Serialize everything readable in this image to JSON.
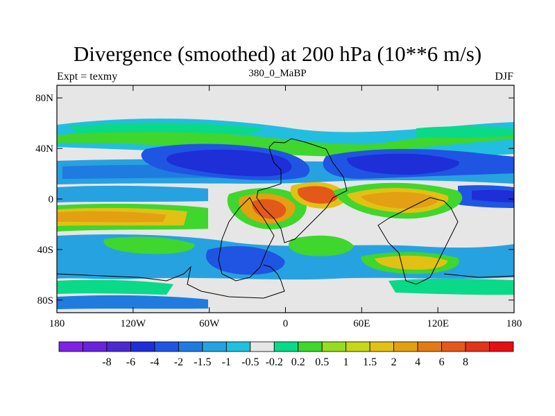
{
  "title": "Divergence (smoothed) at 200 hPa (10**6 m/s)",
  "subtitle": "380_0_MaBP",
  "left_label": "Expt = texmy",
  "right_label": "DJF",
  "map": {
    "lat_ticks": [
      {
        "label": "80N",
        "value": 80
      },
      {
        "label": "40N",
        "value": 40
      },
      {
        "label": "0",
        "value": 0
      },
      {
        "label": "40S",
        "value": -40
      },
      {
        "label": "80S",
        "value": -80
      }
    ],
    "lon_ticks": [
      {
        "label": "180",
        "value": -180
      },
      {
        "label": "120W",
        "value": -120
      },
      {
        "label": "60W",
        "value": -60
      },
      {
        "label": "0",
        "value": 0
      },
      {
        "label": "60E",
        "value": 60
      },
      {
        "label": "120E",
        "value": 120
      },
      {
        "label": "180",
        "value": 180
      }
    ]
  },
  "colorbar": {
    "colors": [
      "#7e23e6",
      "#6a23dc",
      "#4c28d0",
      "#1e2fd7",
      "#1f55e2",
      "#1f7be0",
      "#27a2e0",
      "#22bedf",
      "#e6e6e6",
      "#0ad988",
      "#3fd62d",
      "#94dd20",
      "#c7d617",
      "#e2c114",
      "#e3a012",
      "#e27b16",
      "#e3591a",
      "#e0351b",
      "#e60d14"
    ],
    "labels": [
      "-8",
      "-6",
      "-4",
      "-2",
      "-1.5",
      "-1",
      "-0.5",
      "-0.2",
      "0.2",
      "0.5",
      "1",
      "1.5",
      "2",
      "4",
      "6",
      "8"
    ]
  }
}
